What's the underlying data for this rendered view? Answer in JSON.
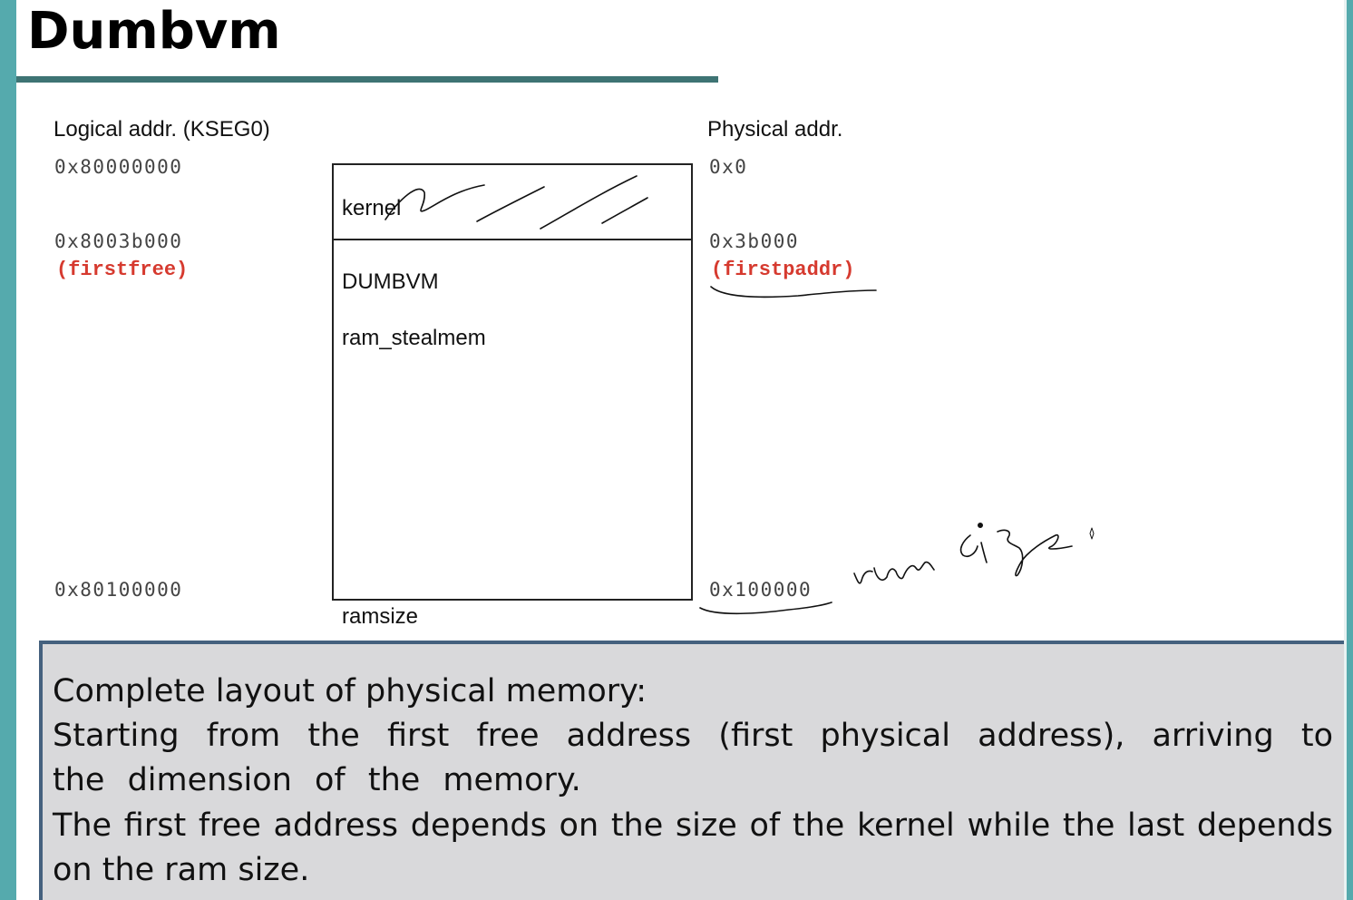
{
  "slide": {
    "title": "Dumbvm"
  },
  "diagram": {
    "logical_heading": "Logical addr. (KSEG0)",
    "physical_heading": "Physical addr.",
    "logical": {
      "start": "0x80000000",
      "firstfree_addr": "0x8003b000",
      "firstfree_label": "(firstfree)",
      "end": "0x80100000"
    },
    "physical": {
      "start": "0x0",
      "firstpaddr_addr": "0x3b000",
      "firstpaddr_label": "(firstpaddr)",
      "end": "0x100000"
    },
    "box": {
      "kernel": "kernel",
      "dumbvm": "DUMBVM",
      "stealmem": "ram_stealmem",
      "ramsize": "ramsize"
    },
    "handwritten_note": "ram size"
  },
  "notes": {
    "line1": "Complete layout of physical memory:",
    "line2": "Starting from the first free address (first physical address), arriving to the dimension of the memory.",
    "line3": "The first free address depends on the size of the kernel while the last depends on the ram size."
  },
  "colors": {
    "accent_teal": "#55aaad",
    "rule": "#3e7474",
    "highlight_red": "#d63a2f",
    "panel_bg": "#d9d9db",
    "panel_border": "#45617e"
  }
}
